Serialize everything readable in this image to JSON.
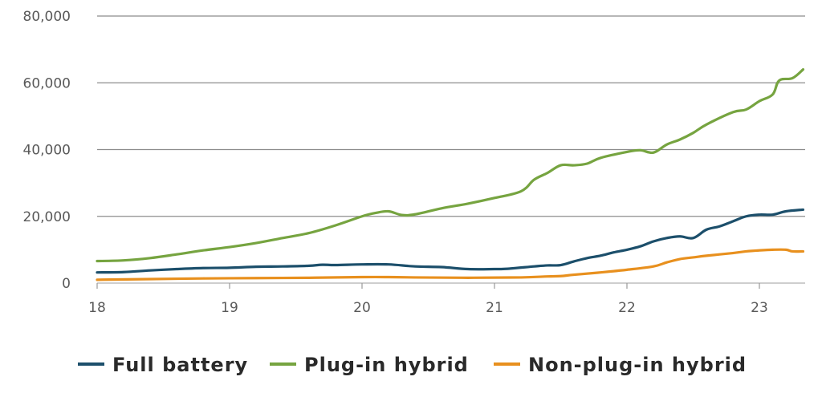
{
  "chart_data": {
    "type": "line",
    "title": "",
    "xlabel": "",
    "ylabel": "",
    "ylim": [
      0,
      80000
    ],
    "xlim": [
      18,
      23.33
    ],
    "y_ticks": [
      {
        "value": 0,
        "label": "0"
      },
      {
        "value": 20000,
        "label": "20,000"
      },
      {
        "value": 40000,
        "label": "40,000"
      },
      {
        "value": 60000,
        "label": "60,000"
      },
      {
        "value": 80000,
        "label": "80,000"
      }
    ],
    "x_ticks": [
      {
        "value": 18,
        "label": "18"
      },
      {
        "value": 19,
        "label": "19"
      },
      {
        "value": 20,
        "label": "20"
      },
      {
        "value": 21,
        "label": "21"
      },
      {
        "value": 22,
        "label": "22"
      },
      {
        "value": 23,
        "label": "23"
      }
    ],
    "grid": "horizontal",
    "legend_position": "bottom",
    "series": [
      {
        "name": "Full battery",
        "color": "#1c4f6b",
        "points": [
          [
            18.0,
            3200
          ],
          [
            18.2,
            3300
          ],
          [
            18.4,
            3800
          ],
          [
            18.6,
            4200
          ],
          [
            18.8,
            4500
          ],
          [
            19.0,
            4600
          ],
          [
            19.2,
            4900
          ],
          [
            19.4,
            5000
          ],
          [
            19.6,
            5200
          ],
          [
            19.7,
            5500
          ],
          [
            19.8,
            5400
          ],
          [
            20.0,
            5600
          ],
          [
            20.2,
            5600
          ],
          [
            20.4,
            5000
          ],
          [
            20.6,
            4800
          ],
          [
            20.8,
            4200
          ],
          [
            21.0,
            4200
          ],
          [
            21.1,
            4300
          ],
          [
            21.3,
            5000
          ],
          [
            21.4,
            5300
          ],
          [
            21.5,
            5400
          ],
          [
            21.6,
            6500
          ],
          [
            21.7,
            7500
          ],
          [
            21.8,
            8200
          ],
          [
            21.9,
            9200
          ],
          [
            22.0,
            10000
          ],
          [
            22.1,
            11000
          ],
          [
            22.2,
            12500
          ],
          [
            22.3,
            13500
          ],
          [
            22.4,
            14000
          ],
          [
            22.5,
            13500
          ],
          [
            22.6,
            16000
          ],
          [
            22.7,
            17000
          ],
          [
            22.8,
            18500
          ],
          [
            22.9,
            20000
          ],
          [
            23.0,
            20500
          ],
          [
            23.1,
            20500
          ],
          [
            23.2,
            21500
          ],
          [
            23.33,
            22000
          ]
        ]
      },
      {
        "name": "Plug-in hybrid",
        "color": "#76a440",
        "points": [
          [
            18.0,
            6600
          ],
          [
            18.2,
            6800
          ],
          [
            18.4,
            7500
          ],
          [
            18.6,
            8600
          ],
          [
            18.8,
            9800
          ],
          [
            19.0,
            10800
          ],
          [
            19.2,
            12000
          ],
          [
            19.4,
            13500
          ],
          [
            19.6,
            15000
          ],
          [
            19.8,
            17300
          ],
          [
            20.0,
            20000
          ],
          [
            20.1,
            21000
          ],
          [
            20.2,
            21500
          ],
          [
            20.3,
            20400
          ],
          [
            20.4,
            20600
          ],
          [
            20.6,
            22400
          ],
          [
            20.8,
            23800
          ],
          [
            21.0,
            25500
          ],
          [
            21.2,
            27500
          ],
          [
            21.3,
            31000
          ],
          [
            21.4,
            33000
          ],
          [
            21.5,
            35300
          ],
          [
            21.6,
            35300
          ],
          [
            21.7,
            35800
          ],
          [
            21.8,
            37500
          ],
          [
            22.0,
            39300
          ],
          [
            22.1,
            39800
          ],
          [
            22.2,
            39100
          ],
          [
            22.3,
            41500
          ],
          [
            22.4,
            43000
          ],
          [
            22.5,
            45000
          ],
          [
            22.6,
            47500
          ],
          [
            22.8,
            51200
          ],
          [
            22.9,
            52000
          ],
          [
            23.0,
            54500
          ],
          [
            23.1,
            56500
          ],
          [
            23.15,
            60700
          ],
          [
            23.25,
            61400
          ],
          [
            23.33,
            64000
          ]
        ]
      },
      {
        "name": "Non-plug-in hybrid",
        "color": "#e8901e",
        "points": [
          [
            18.0,
            1000
          ],
          [
            18.4,
            1200
          ],
          [
            18.8,
            1400
          ],
          [
            19.2,
            1500
          ],
          [
            19.6,
            1600
          ],
          [
            20.0,
            1800
          ],
          [
            20.2,
            1800
          ],
          [
            20.4,
            1700
          ],
          [
            20.8,
            1600
          ],
          [
            21.2,
            1700
          ],
          [
            21.4,
            2000
          ],
          [
            21.5,
            2100
          ],
          [
            21.6,
            2500
          ],
          [
            21.8,
            3200
          ],
          [
            22.0,
            4000
          ],
          [
            22.2,
            5000
          ],
          [
            22.3,
            6200
          ],
          [
            22.4,
            7200
          ],
          [
            22.5,
            7700
          ],
          [
            22.6,
            8200
          ],
          [
            22.8,
            9000
          ],
          [
            22.9,
            9500
          ],
          [
            23.0,
            9800
          ],
          [
            23.1,
            10000
          ],
          [
            23.2,
            10000
          ],
          [
            23.25,
            9500
          ],
          [
            23.33,
            9500
          ]
        ]
      }
    ]
  }
}
